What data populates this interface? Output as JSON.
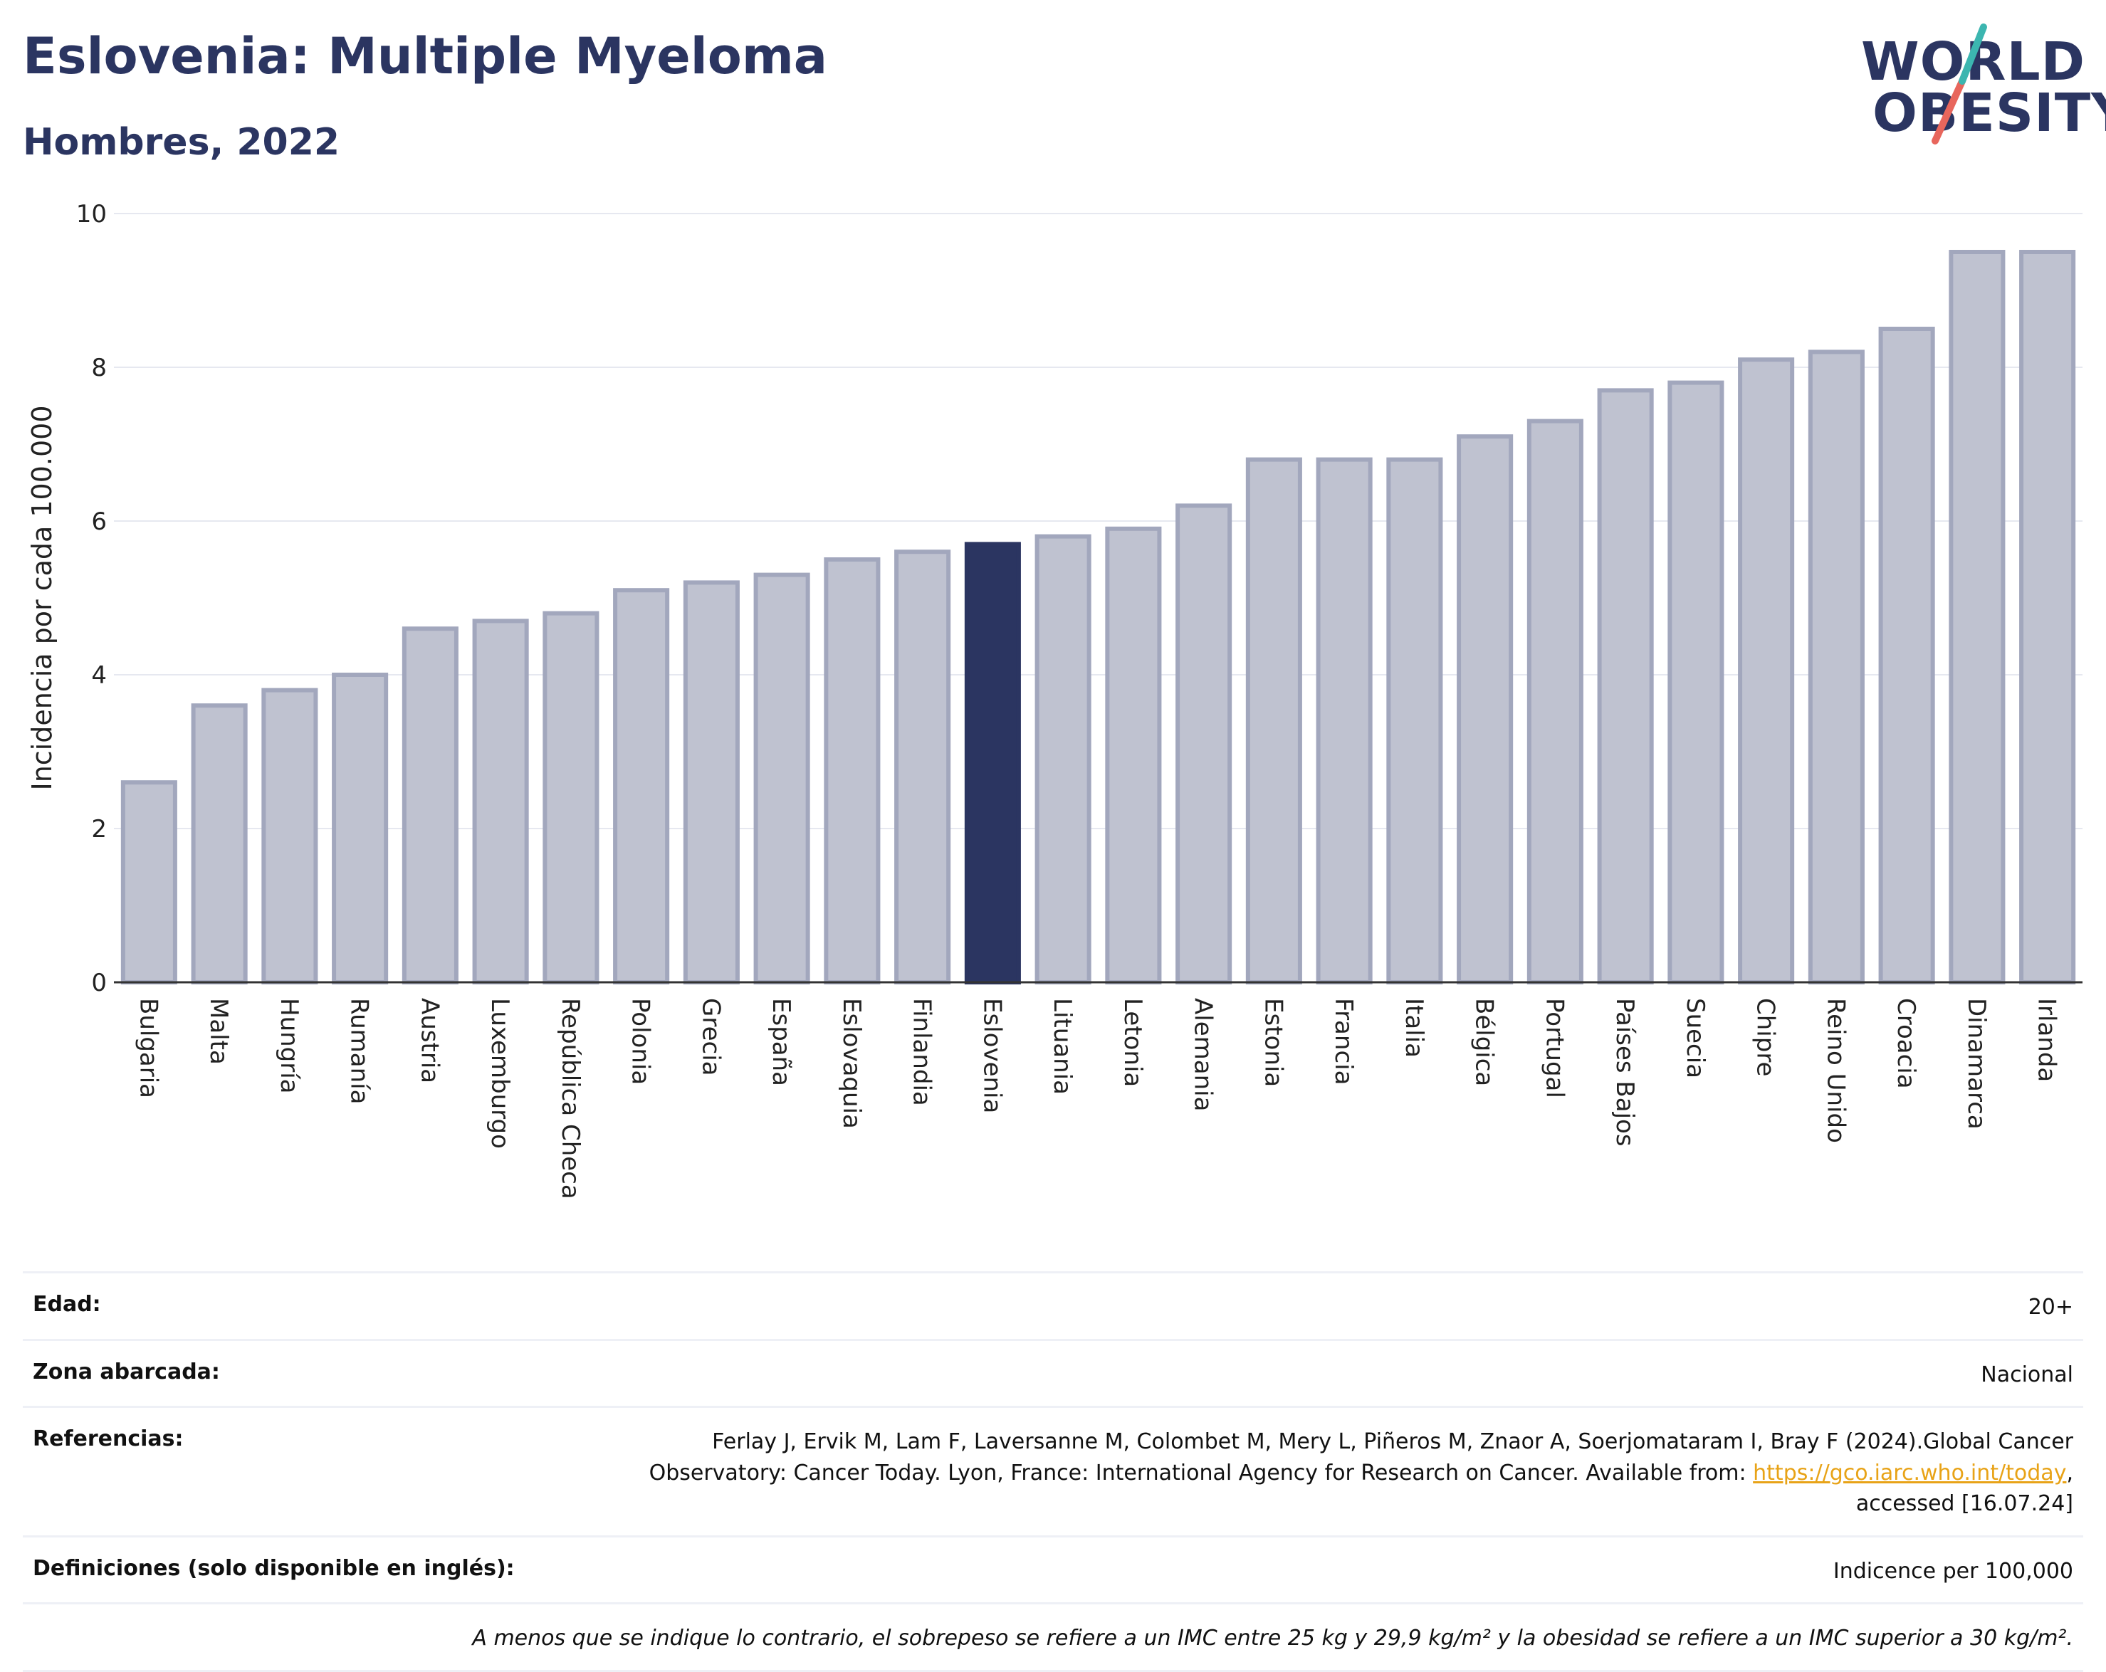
{
  "header": {
    "title": "Eslovenia: Multiple Myeloma",
    "subtitle": "Hombres, 2022"
  },
  "logo": {
    "line1": "WORLD",
    "line2": "OBESITY",
    "brand_colors": [
      "#2b3561",
      "#3cb6b0",
      "#e8665c"
    ]
  },
  "chart_data": {
    "type": "bar",
    "ylabel": "Incidencia por cada 100.000",
    "xlabel": "",
    "ylim": [
      0,
      10
    ],
    "yticks": [
      0,
      2,
      4,
      6,
      8,
      10
    ],
    "grid": true,
    "highlight": "Eslovenia",
    "colors": {
      "bar_fill": "#bfc2d0",
      "bar_stroke": "#a2a7bd",
      "highlight_fill": "#2b3561",
      "grid": "#e6e8f0",
      "axis": "#333333"
    },
    "categories": [
      "Bulgaria",
      "Malta",
      "Hungría",
      "Rumanía",
      "Austria",
      "Luxemburgo",
      "República Checa",
      "Polonia",
      "Grecia",
      "España",
      "Eslovaquia",
      "Finlandia",
      "Eslovenia",
      "Lituania",
      "Letonia",
      "Alemania",
      "Estonia",
      "Francia",
      "Italia",
      "Bélgica",
      "Portugal",
      "Países Bajos",
      "Suecia",
      "Chipre",
      "Reino Unido",
      "Croacia",
      "Dinamarca",
      "Irlanda"
    ],
    "values": [
      2.6,
      3.6,
      3.8,
      4.0,
      4.6,
      4.7,
      4.8,
      5.1,
      5.2,
      5.3,
      5.5,
      5.6,
      5.7,
      5.8,
      5.9,
      6.2,
      6.8,
      6.8,
      6.8,
      7.1,
      7.3,
      7.7,
      7.8,
      8.1,
      8.2,
      8.5,
      9.5,
      9.5
    ]
  },
  "details": {
    "age_label": "Edad:",
    "age_value": "20+",
    "area_label": "Zona abarcada:",
    "area_value": "Nacional",
    "ref_label": "Referencias:",
    "ref_text1": "Ferlay J, Ervik M, Lam F, Laversanne M, Colombet M, Mery L, Piñeros M, Znaor A, Soerjomataram I, Bray F (2024).Global Cancer",
    "ref_text2": "Observatory: Cancer Today. Lyon, France: International Agency for Research on Cancer. Available from: ",
    "ref_link": "https://gco.iarc.who.int/today",
    "ref_text3": "accessed [16.07.24]",
    "def_label": "Definiciones (solo disponible en inglés):",
    "def_value": "Indicence per 100,000",
    "note": "A menos que se indique lo contrario, el sobrepeso se refiere a un IMC entre 25 kg y 29,9 kg/m² y la obesidad se refiere a un IMC superior a 30 kg/m²."
  }
}
